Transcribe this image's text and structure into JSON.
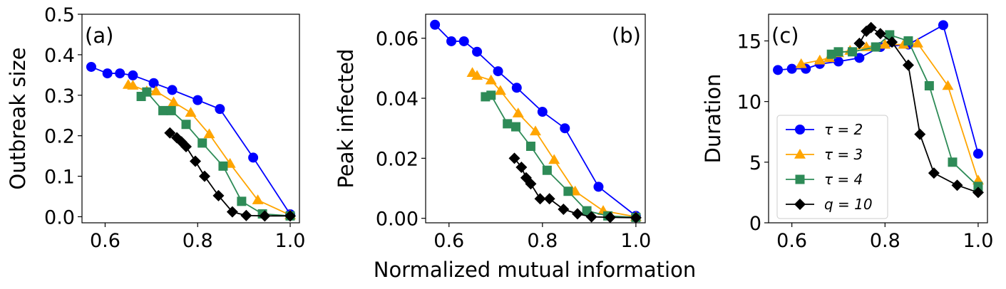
{
  "chart_data": {
    "type": "line",
    "shared_xlabel": "Normalized mutual information",
    "colors": {
      "tau2": "#0000ff",
      "tau3": "#ffa500",
      "tau4": "#2e8b57",
      "q10": "#000000"
    },
    "panels": [
      {
        "id": "a",
        "tag": "(a)",
        "tag_position": "top-left",
        "ylabel": "Outbreak size",
        "xlim": [
          0.55,
          1.02
        ],
        "ylim": [
          -0.015,
          0.5
        ],
        "xticks": [
          0.6,
          0.8,
          1.0
        ],
        "xtick_labels": [
          "0.6",
          "0.8",
          "1.0"
        ],
        "yticks": [
          0.0,
          0.1,
          0.2,
          0.3,
          0.4,
          0.5
        ],
        "ytick_labels": [
          "0.0",
          "0.1",
          "0.2",
          "0.3",
          "0.4",
          "0.5"
        ],
        "series": [
          {
            "name": "τ = 2",
            "color_key": "tau2",
            "marker": "circle",
            "x": [
              0.57,
              0.605,
              0.632,
              0.66,
              0.705,
              0.745,
              0.8,
              0.848,
              0.92,
              1.0
            ],
            "y": [
              0.37,
              0.354,
              0.354,
              0.349,
              0.33,
              0.313,
              0.288,
              0.266,
              0.146,
              0.006
            ]
          },
          {
            "name": "τ = 3",
            "color_key": "tau3",
            "marker": "triangle",
            "x": [
              0.65,
              0.66,
              0.69,
              0.71,
              0.748,
              0.785,
              0.825,
              0.87,
              0.93,
              1.0
            ],
            "y": [
              0.326,
              0.324,
              0.31,
              0.31,
              0.283,
              0.257,
              0.204,
              0.131,
              0.041,
              0.004
            ]
          },
          {
            "name": "τ = 4",
            "color_key": "tau4",
            "marker": "square",
            "x": [
              0.678,
              0.69,
              0.725,
              0.743,
              0.775,
              0.81,
              0.855,
              0.895,
              0.94,
              1.0
            ],
            "y": [
              0.297,
              0.308,
              0.262,
              0.262,
              0.228,
              0.182,
              0.125,
              0.038,
              0.007,
              0.002
            ]
          },
          {
            "name": "q = 10",
            "color_key": "q10",
            "marker": "diamond",
            "x": [
              0.74,
              0.755,
              0.765,
              0.775,
              0.795,
              0.815,
              0.845,
              0.875,
              0.905,
              0.945,
              1.0
            ],
            "y": [
              0.207,
              0.195,
              0.185,
              0.173,
              0.137,
              0.1,
              0.052,
              0.012,
              0.003,
              0.002,
              0.002
            ]
          }
        ]
      },
      {
        "id": "b",
        "tag": "(b)",
        "tag_position": "top-right",
        "ylabel": "Peak infected",
        "xlim": [
          0.55,
          1.02
        ],
        "ylim": [
          -0.0015,
          0.068
        ],
        "xticks": [
          0.6,
          0.8,
          1.0
        ],
        "xtick_labels": [
          "0.6",
          "0.8",
          "1.0"
        ],
        "yticks": [
          0.0,
          0.02,
          0.04,
          0.06
        ],
        "ytick_labels": [
          "0.00",
          "0.02",
          "0.04",
          "0.06"
        ],
        "series": [
          {
            "name": "τ = 2",
            "color_key": "tau2",
            "marker": "circle",
            "x": [
              0.57,
              0.605,
              0.632,
              0.66,
              0.705,
              0.745,
              0.8,
              0.848,
              0.92,
              1.0
            ],
            "y": [
              0.0645,
              0.059,
              0.059,
              0.0555,
              0.049,
              0.0435,
              0.0355,
              0.03,
              0.0105,
              0.0008
            ]
          },
          {
            "name": "τ = 3",
            "color_key": "tau3",
            "marker": "triangle",
            "x": [
              0.65,
              0.66,
              0.69,
              0.71,
              0.748,
              0.785,
              0.825,
              0.87,
              0.93,
              1.0
            ],
            "y": [
              0.0485,
              0.0475,
              0.046,
              0.0425,
              0.035,
              0.029,
              0.0195,
              0.009,
              0.0025,
              0.0005
            ]
          },
          {
            "name": "τ = 4",
            "color_key": "tau4",
            "marker": "square",
            "x": [
              0.678,
              0.69,
              0.725,
              0.743,
              0.775,
              0.81,
              0.855,
              0.895,
              0.94,
              1.0
            ],
            "y": [
              0.0405,
              0.041,
              0.0315,
              0.0305,
              0.024,
              0.016,
              0.009,
              0.0025,
              0.0008,
              0.0003
            ]
          },
          {
            "name": "q = 10",
            "color_key": "q10",
            "marker": "diamond",
            "x": [
              0.74,
              0.755,
              0.765,
              0.775,
              0.795,
              0.815,
              0.845,
              0.875,
              0.905,
              0.945,
              1.0
            ],
            "y": [
              0.02,
              0.017,
              0.0135,
              0.0115,
              0.0065,
              0.0065,
              0.003,
              0.0015,
              0.0005,
              0.0003,
              0.0002
            ]
          }
        ]
      },
      {
        "id": "c",
        "tag": "(c)",
        "tag_position": "top-left",
        "ylabel": "Duration",
        "xlim": [
          0.55,
          1.02
        ],
        "ylim": [
          0,
          17.2
        ],
        "xticks": [
          0.6,
          0.8,
          1.0
        ],
        "xtick_labels": [
          "0.6",
          "0.8",
          "1.0"
        ],
        "yticks": [
          0,
          5,
          10,
          15
        ],
        "ytick_labels": [
          "0",
          "5",
          "10",
          "15"
        ],
        "legend_position": "lower-left",
        "series": [
          {
            "name": "τ = 2",
            "color_key": "tau2",
            "marker": "circle",
            "x": [
              0.57,
              0.6,
              0.63,
              0.66,
              0.7,
              0.745,
              0.79,
              0.85,
              0.925,
              1.0
            ],
            "y": [
              12.6,
              12.7,
              12.7,
              13.1,
              13.3,
              13.6,
              14.5,
              14.7,
              16.3,
              5.7
            ]
          },
          {
            "name": "τ = 3",
            "color_key": "tau3",
            "marker": "triangle",
            "x": [
              0.62,
              0.66,
              0.68,
              0.7,
              0.725,
              0.76,
              0.8,
              0.84,
              0.87,
              0.935,
              1.0
            ],
            "y": [
              13.1,
              13.4,
              13.6,
              14.0,
              14.2,
              14.5,
              14.7,
              14.7,
              14.8,
              11.3,
              3.5
            ]
          },
          {
            "name": "τ = 4",
            "color_key": "tau4",
            "marker": "square",
            "x": [
              0.685,
              0.7,
              0.73,
              0.78,
              0.81,
              0.85,
              0.895,
              0.945,
              1.0
            ],
            "y": [
              13.9,
              14.1,
              14.1,
              14.5,
              15.5,
              15.0,
              11.3,
              5.0,
              3.0
            ]
          },
          {
            "name": "q = 10",
            "color_key": "q10",
            "marker": "diamond",
            "x": [
              0.745,
              0.76,
              0.77,
              0.79,
              0.815,
              0.85,
              0.875,
              0.905,
              0.955,
              1.0
            ],
            "y": [
              14.8,
              15.8,
              16.1,
              15.6,
              14.9,
              13.0,
              7.3,
              4.1,
              3.1,
              2.5
            ]
          }
        ]
      }
    ]
  }
}
